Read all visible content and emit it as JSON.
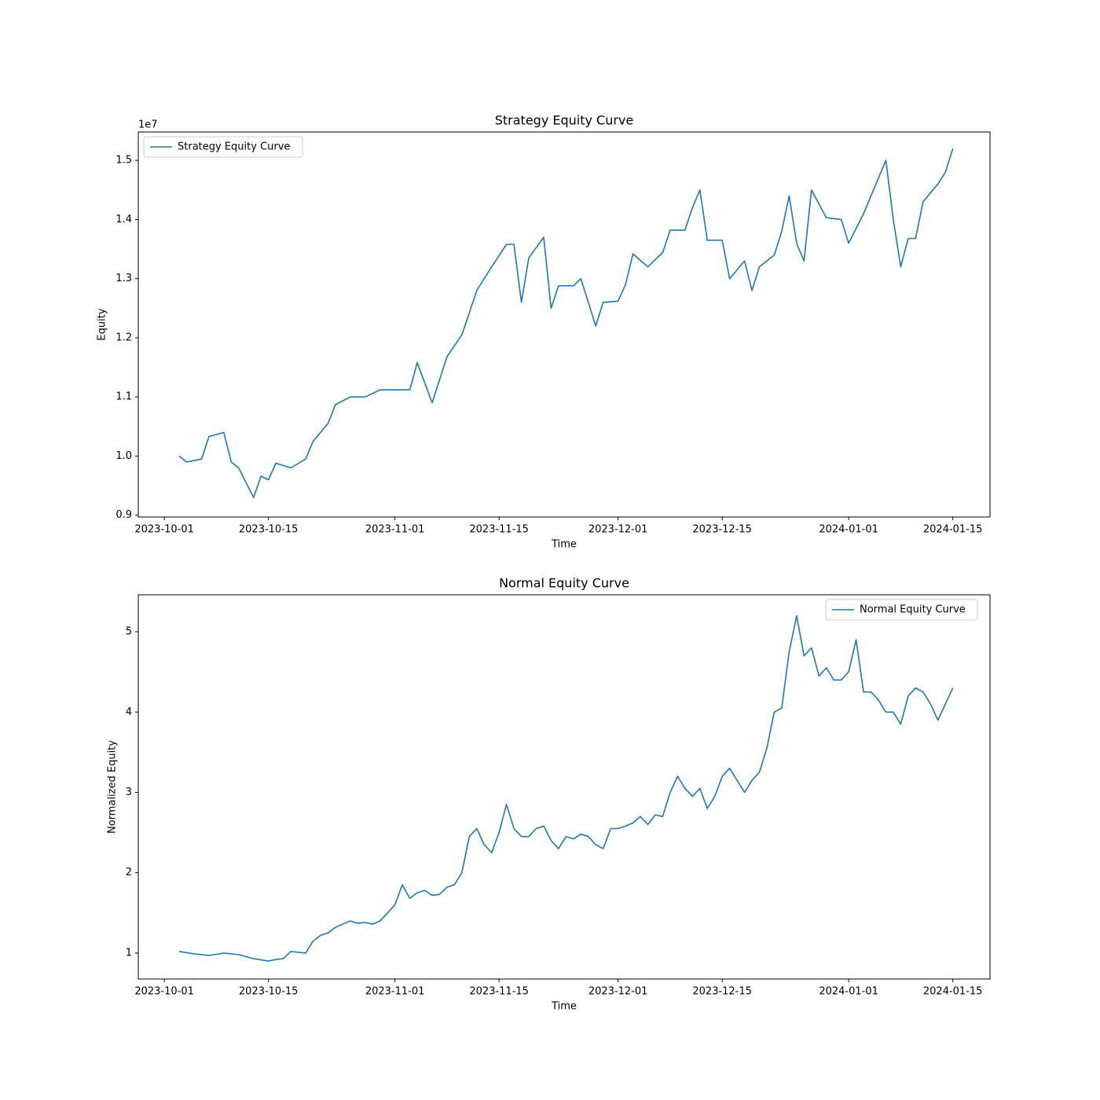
{
  "chart_data": [
    {
      "type": "line",
      "title": "Strategy Equity Curve",
      "xlabel": "Time",
      "ylabel": "Equity",
      "offset_label": "1e7",
      "legend": "upper left",
      "x": [
        "2023-10-03",
        "2023-10-04",
        "2023-10-06",
        "2023-10-07",
        "2023-10-09",
        "2023-10-10",
        "2023-10-11",
        "2023-10-13",
        "2023-10-14",
        "2023-10-15",
        "2023-10-16",
        "2023-10-18",
        "2023-10-20",
        "2023-10-21",
        "2023-10-23",
        "2023-10-24",
        "2023-10-26",
        "2023-10-28",
        "2023-10-30",
        "2023-11-03",
        "2023-11-04",
        "2023-11-06",
        "2023-11-08",
        "2023-11-10",
        "2023-11-11",
        "2023-11-12",
        "2023-11-14",
        "2023-11-16",
        "2023-11-17",
        "2023-11-18",
        "2023-11-19",
        "2023-11-21",
        "2023-11-22",
        "2023-11-23",
        "2023-11-25",
        "2023-11-26",
        "2023-11-28",
        "2023-11-29",
        "2023-12-01",
        "2023-12-02",
        "2023-12-03",
        "2023-12-05",
        "2023-12-07",
        "2023-12-08",
        "2023-12-10",
        "2023-12-11",
        "2023-12-12",
        "2023-12-13",
        "2023-12-15",
        "2023-12-16",
        "2023-12-18",
        "2023-12-19",
        "2023-12-20",
        "2023-12-22",
        "2023-12-23",
        "2023-12-24",
        "2023-12-25",
        "2023-12-26",
        "2023-12-27",
        "2023-12-29",
        "2023-12-31",
        "2024-01-01",
        "2024-01-03",
        "2024-01-05",
        "2024-01-06",
        "2024-01-07",
        "2024-01-08",
        "2024-01-09",
        "2024-01-10",
        "2024-01-11",
        "2024-01-13",
        "2024-01-14",
        "2024-01-15"
      ],
      "series": [
        {
          "name": "Strategy Equity Curve",
          "color": "#1f77b4",
          "values": [
            10000000,
            9900000,
            9950000,
            10330000,
            10400000,
            9900000,
            9800000,
            9300000,
            9660000,
            9600000,
            9880000,
            9800000,
            9950000,
            10250000,
            10550000,
            10870000,
            11000000,
            11000000,
            11120000,
            11120000,
            11580000,
            10900000,
            11680000,
            12050000,
            12420000,
            12800000,
            13200000,
            13580000,
            13580000,
            12600000,
            13350000,
            13700000,
            12500000,
            12880000,
            12880000,
            13000000,
            12200000,
            12600000,
            12620000,
            12900000,
            13420000,
            13200000,
            13440000,
            13820000,
            13820000,
            14200000,
            14500000,
            13650000,
            13650000,
            13000000,
            13300000,
            12800000,
            13200000,
            13400000,
            13800000,
            14400000,
            13600000,
            13300000,
            14500000,
            14030000,
            14000000,
            13600000,
            14100000,
            14700000,
            15000000,
            14000000,
            13200000,
            13680000,
            13680000,
            14300000,
            14600000,
            14800000,
            15200000
          ]
        }
      ],
      "xlim": [
        "2023-09-27T12:00:00Z",
        "2024-01-20T00:00:00Z"
      ],
      "xticks": [
        "2023-10-01",
        "2023-10-15",
        "2023-11-01",
        "2023-11-15",
        "2023-12-01",
        "2023-12-15",
        "2024-01-01",
        "2024-01-15"
      ],
      "ylim": [
        8970000,
        15480000
      ],
      "yticks": [
        {
          "value": 9000000,
          "label": "0.9"
        },
        {
          "value": 10000000,
          "label": "1.0"
        },
        {
          "value": 11000000,
          "label": "1.1"
        },
        {
          "value": 12000000,
          "label": "1.2"
        },
        {
          "value": 13000000,
          "label": "1.3"
        },
        {
          "value": 14000000,
          "label": "1.4"
        },
        {
          "value": 15000000,
          "label": "1.5"
        }
      ]
    },
    {
      "type": "line",
      "title": "Normal Equity Curve",
      "xlabel": "Time",
      "ylabel": "Normalized Equity",
      "legend": "upper right",
      "x": [
        "2023-10-03",
        "2023-10-05",
        "2023-10-07",
        "2023-10-09",
        "2023-10-11",
        "2023-10-13",
        "2023-10-15",
        "2023-10-16",
        "2023-10-17",
        "2023-10-18",
        "2023-10-19",
        "2023-10-20",
        "2023-10-21",
        "2023-10-22",
        "2023-10-23",
        "2023-10-24",
        "2023-10-25",
        "2023-10-26",
        "2023-10-27",
        "2023-10-28",
        "2023-10-29",
        "2023-10-30",
        "2023-10-31",
        "2023-11-01",
        "2023-11-02",
        "2023-11-03",
        "2023-11-04",
        "2023-11-05",
        "2023-11-06",
        "2023-11-07",
        "2023-11-08",
        "2023-11-09",
        "2023-11-10",
        "2023-11-11",
        "2023-11-12",
        "2023-11-13",
        "2023-11-14",
        "2023-11-15",
        "2023-11-16",
        "2023-11-17",
        "2023-11-18",
        "2023-11-19",
        "2023-11-20",
        "2023-11-21",
        "2023-11-22",
        "2023-11-23",
        "2023-11-24",
        "2023-11-25",
        "2023-11-26",
        "2023-11-27",
        "2023-11-28",
        "2023-11-29",
        "2023-11-30",
        "2023-12-01",
        "2023-12-02",
        "2023-12-03",
        "2023-12-04",
        "2023-12-05",
        "2023-12-06",
        "2023-12-07",
        "2023-12-08",
        "2023-12-09",
        "2023-12-10",
        "2023-12-11",
        "2023-12-12",
        "2023-12-13",
        "2023-12-14",
        "2023-12-15",
        "2023-12-16",
        "2023-12-17",
        "2023-12-18",
        "2023-12-19",
        "2023-12-20",
        "2023-12-21",
        "2023-12-22",
        "2023-12-23",
        "2023-12-24",
        "2023-12-25",
        "2023-12-26",
        "2023-12-27",
        "2023-12-28",
        "2023-12-29",
        "2023-12-30",
        "2023-12-31",
        "2024-01-01",
        "2024-01-02",
        "2024-01-03",
        "2024-01-04",
        "2024-01-05",
        "2024-01-06",
        "2024-01-07",
        "2024-01-08",
        "2024-01-09",
        "2024-01-10",
        "2024-01-11",
        "2024-01-12",
        "2024-01-13",
        "2024-01-14",
        "2024-01-15"
      ],
      "series": [
        {
          "name": "Normal Equity Curve",
          "color": "#1f77b4",
          "values": [
            1.02,
            0.99,
            0.97,
            1.0,
            0.98,
            0.93,
            0.9,
            0.92,
            0.93,
            1.02,
            1.01,
            1.0,
            1.15,
            1.22,
            1.25,
            1.32,
            1.36,
            1.4,
            1.37,
            1.38,
            1.36,
            1.4,
            1.5,
            1.6,
            1.85,
            1.68,
            1.75,
            1.78,
            1.72,
            1.73,
            1.82,
            1.85,
            2.0,
            2.45,
            2.55,
            2.35,
            2.25,
            2.5,
            2.85,
            2.55,
            2.45,
            2.45,
            2.55,
            2.58,
            2.4,
            2.3,
            2.45,
            2.42,
            2.48,
            2.45,
            2.35,
            2.3,
            2.55,
            2.55,
            2.58,
            2.62,
            2.7,
            2.6,
            2.72,
            2.7,
            3.0,
            3.2,
            3.05,
            2.95,
            3.05,
            2.8,
            2.95,
            3.2,
            3.3,
            3.15,
            3.0,
            3.15,
            3.25,
            3.55,
            4.0,
            4.05,
            4.75,
            5.2,
            4.7,
            4.8,
            4.45,
            4.55,
            4.4,
            4.4,
            4.5,
            4.9,
            4.25,
            4.25,
            4.15,
            4.0,
            4.0,
            3.85,
            4.2,
            4.3,
            4.25,
            4.1,
            3.9,
            4.1,
            4.3
          ]
        }
      ],
      "xlim": [
        "2023-09-27T12:00:00Z",
        "2024-01-20T00:00:00Z"
      ],
      "xticks": [
        "2023-10-01",
        "2023-10-15",
        "2023-11-01",
        "2023-11-15",
        "2023-12-01",
        "2023-12-15",
        "2024-01-01",
        "2024-01-15"
      ],
      "ylim": [
        0.677,
        5.46
      ],
      "yticks": [
        1,
        2,
        3,
        4,
        5
      ]
    }
  ]
}
